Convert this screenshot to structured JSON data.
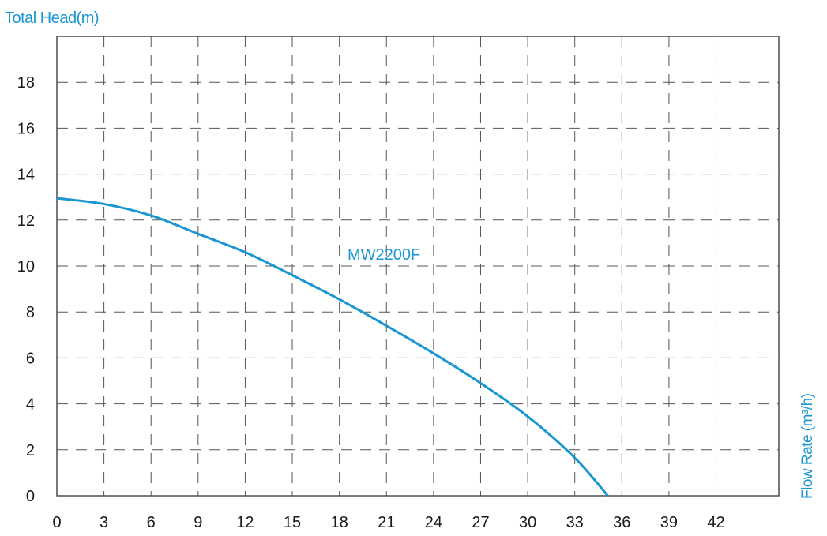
{
  "chart_data": {
    "type": "line",
    "ylabel": "Total Head(m)",
    "xlabel": "Flow Rate (m³/h)",
    "xlim": [
      0,
      46
    ],
    "ylim": [
      0,
      20
    ],
    "x_ticks": [
      0,
      3,
      6,
      9,
      12,
      15,
      18,
      21,
      24,
      27,
      30,
      33,
      36,
      39,
      42
    ],
    "y_ticks": [
      0,
      2,
      4,
      6,
      8,
      10,
      12,
      14,
      16,
      18
    ],
    "grid": true,
    "series": [
      {
        "name": "MW2200F",
        "color": "#1a96d2",
        "x": [
          0,
          3,
          6,
          9,
          12,
          15,
          18,
          21,
          24,
          27,
          30,
          33,
          35.1
        ],
        "y": [
          12.95,
          12.7,
          12.2,
          11.4,
          10.6,
          9.6,
          8.55,
          7.4,
          6.2,
          4.9,
          3.45,
          1.65,
          0
        ]
      }
    ],
    "label_color": "#1a96d2"
  }
}
